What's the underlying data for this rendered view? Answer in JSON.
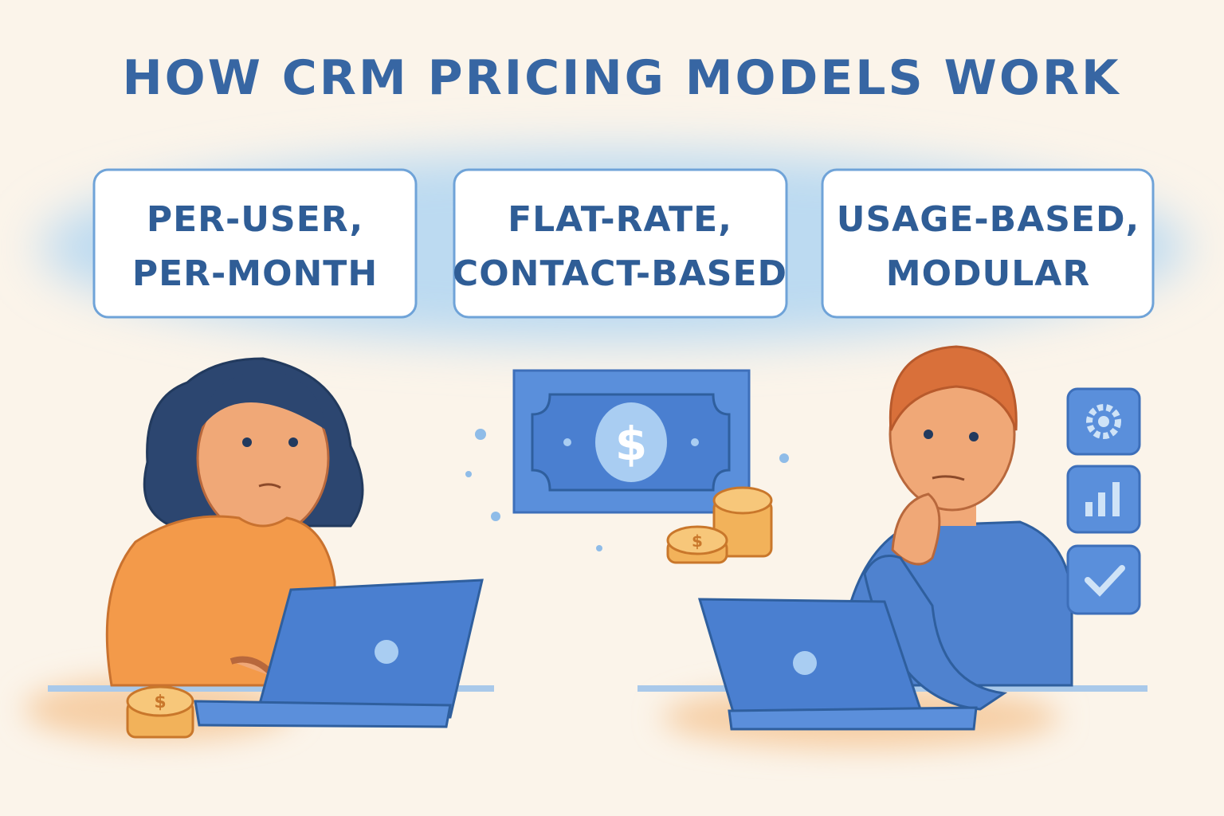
{
  "header": {
    "title": "HOW CRM PRICING MODELS WORK"
  },
  "boxes": [
    {
      "lines": [
        "PER-USER,",
        "PER-MONTH"
      ]
    },
    {
      "lines": [
        "FLAT-RATE,",
        "CONTACT-BASED"
      ]
    },
    {
      "lines": [
        "USAGE-BASED,",
        "MODULAR"
      ]
    }
  ],
  "currency_symbol": "$"
}
